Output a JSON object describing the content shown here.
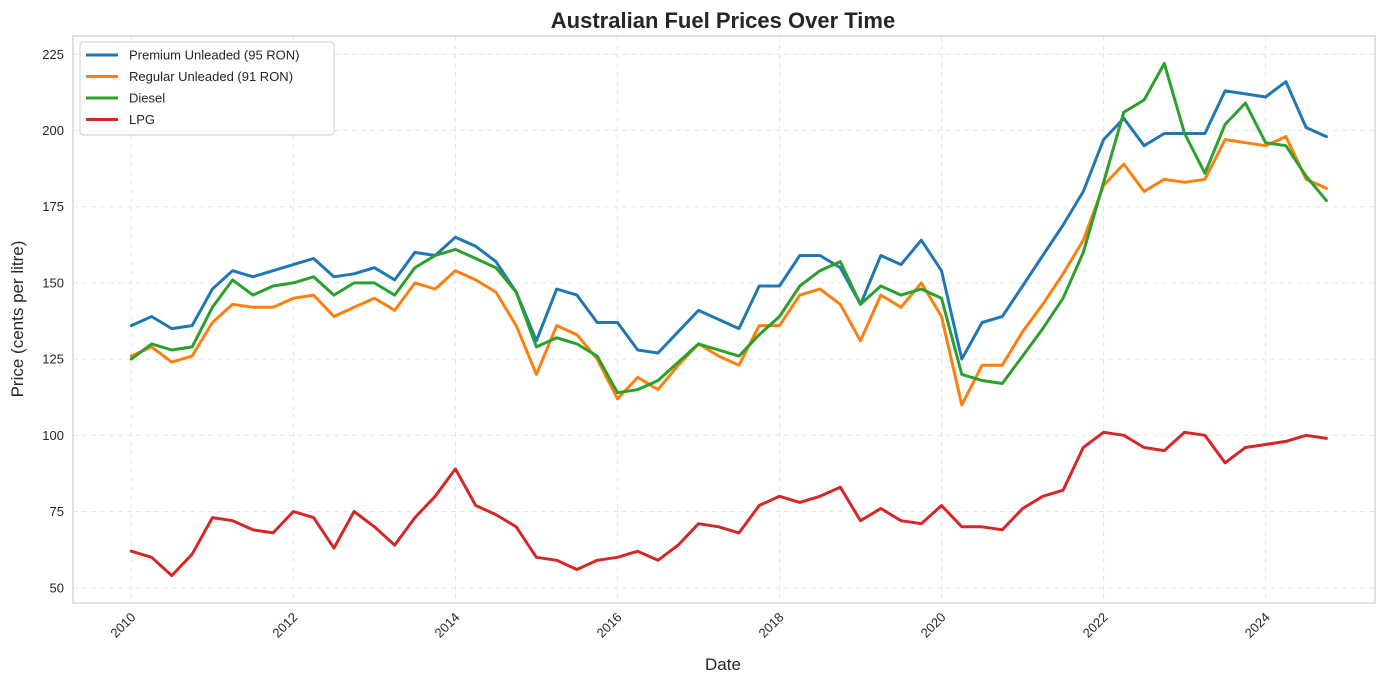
{
  "chart_data": {
    "type": "line",
    "title": "Australian Fuel Prices Over Time",
    "xlabel": "Date",
    "ylabel": "Price (cents per litre)",
    "xlim": [
      2009.28,
      2025.35
    ],
    "ylim": [
      45,
      231
    ],
    "x_ticks": [
      2010,
      2012,
      2014,
      2016,
      2018,
      2020,
      2022,
      2024
    ],
    "x_tick_labels": [
      "2010",
      "2012",
      "2014",
      "2016",
      "2018",
      "2020",
      "2022",
      "2024"
    ],
    "y_ticks": [
      50,
      75,
      100,
      125,
      150,
      175,
      200,
      225
    ],
    "y_tick_labels": [
      "50",
      "75",
      "100",
      "125",
      "150",
      "175",
      "200",
      "225"
    ],
    "grid": true,
    "legend_position": "top-left",
    "x": [
      2010,
      2010.25,
      2010.5,
      2010.75,
      2011,
      2011.25,
      2011.5,
      2011.75,
      2012,
      2012.25,
      2012.5,
      2012.75,
      2013,
      2013.25,
      2013.5,
      2013.75,
      2014,
      2014.25,
      2014.5,
      2014.75,
      2015,
      2015.25,
      2015.5,
      2015.75,
      2016,
      2016.25,
      2016.5,
      2016.75,
      2017,
      2017.25,
      2017.5,
      2017.75,
      2018,
      2018.25,
      2018.5,
      2018.75,
      2019,
      2019.25,
      2019.5,
      2019.75,
      2020,
      2020.25,
      2020.5,
      2020.75,
      2021,
      2021.25,
      2021.5,
      2021.75,
      2022,
      2022.25,
      2022.5,
      2022.75,
      2023,
      2023.25,
      2023.5,
      2023.75,
      2024,
      2024.25,
      2024.5,
      2024.75
    ],
    "series": [
      {
        "name": "Premium Unleaded (95 RON)",
        "color": "#1f77b4",
        "values": [
          136,
          139,
          135,
          136,
          148,
          154,
          152,
          154,
          156,
          158,
          152,
          153,
          155,
          151,
          160,
          159,
          165,
          162,
          157,
          147,
          131,
          148,
          146,
          137,
          137,
          128,
          127,
          134,
          141,
          138,
          135,
          149,
          149,
          159,
          159,
          155,
          143,
          159,
          156,
          164,
          154,
          125,
          137,
          139,
          149,
          159,
          169,
          180,
          197,
          204,
          195,
          199,
          199,
          199,
          213,
          212,
          211,
          216,
          201,
          198
        ]
      },
      {
        "name": "Regular Unleaded (91 RON)",
        "color": "#ff7f0e",
        "values": [
          126,
          129,
          124,
          126,
          137,
          143,
          142,
          142,
          145,
          146,
          139,
          142,
          145,
          141,
          150,
          148,
          154,
          151,
          147,
          136,
          120,
          136,
          133,
          125,
          112,
          119,
          115,
          123,
          130,
          126,
          123,
          136,
          136,
          146,
          148,
          143,
          131,
          146,
          142,
          150,
          139,
          110,
          123,
          123,
          134,
          143,
          153,
          164,
          182,
          189,
          180,
          184,
          183,
          184,
          197,
          196,
          195,
          198,
          184,
          181
        ]
      },
      {
        "name": "Diesel",
        "color": "#2ca02c",
        "values": [
          125,
          130,
          128,
          129,
          142,
          151,
          146,
          149,
          150,
          152,
          146,
          150,
          150,
          146,
          155,
          159,
          161,
          158,
          155,
          147,
          129,
          132,
          130,
          126,
          114,
          115,
          118,
          124,
          130,
          128,
          126,
          133,
          139,
          149,
          154,
          157,
          143,
          149,
          146,
          148,
          145,
          120,
          118,
          117,
          126,
          135,
          145,
          160,
          183,
          206,
          210,
          222,
          199,
          186,
          202,
          209,
          196,
          195,
          185,
          177
        ]
      },
      {
        "name": "LPG",
        "color": "#d62728",
        "values": [
          62,
          60,
          54,
          61,
          73,
          72,
          69,
          68,
          75,
          73,
          63,
          75,
          70,
          64,
          73,
          80,
          89,
          77,
          74,
          70,
          60,
          59,
          56,
          59,
          60,
          62,
          59,
          64,
          71,
          70,
          68,
          77,
          80,
          78,
          80,
          83,
          72,
          76,
          72,
          71,
          77,
          70,
          70,
          69,
          76,
          80,
          82,
          96,
          101,
          100,
          96,
          95,
          101,
          100,
          91,
          96,
          97,
          98,
          100,
          99
        ]
      }
    ]
  }
}
